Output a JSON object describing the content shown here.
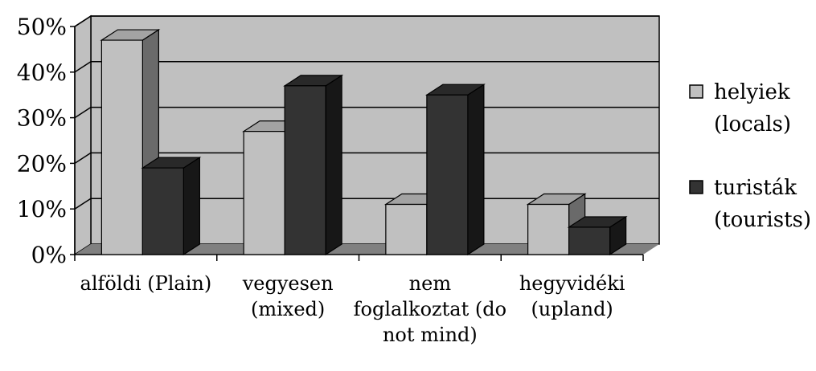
{
  "chart_data": {
    "type": "bar",
    "title": "",
    "xlabel": "",
    "ylabel": "",
    "ylim": [
      0,
      50
    ],
    "y_ticks": [
      "0%",
      "10%",
      "20%",
      "30%",
      "40%",
      "50%"
    ],
    "y_tick_values": [
      0,
      10,
      20,
      30,
      40,
      50
    ],
    "categories": [
      [
        "alföldi (Plain)"
      ],
      [
        "vegyesen",
        "(mixed)"
      ],
      [
        "nem",
        "foglalkoztat (do",
        "not mind)"
      ],
      [
        "hegyvidéki",
        "(upland)"
      ]
    ],
    "series": [
      {
        "name": [
          "helyiek",
          "(locals)"
        ],
        "values": [
          47,
          27,
          11,
          11
        ],
        "color": "#c0c0c0"
      },
      {
        "name": [
          "turisták",
          "(tourists)"
        ],
        "values": [
          19,
          37,
          35,
          6
        ],
        "color": "#333333"
      }
    ],
    "grid": true,
    "legend_position": "right",
    "three_d": true,
    "colors": {
      "wall": "#c0c0c0",
      "floor": "#808080",
      "gridline": "#000000"
    }
  }
}
